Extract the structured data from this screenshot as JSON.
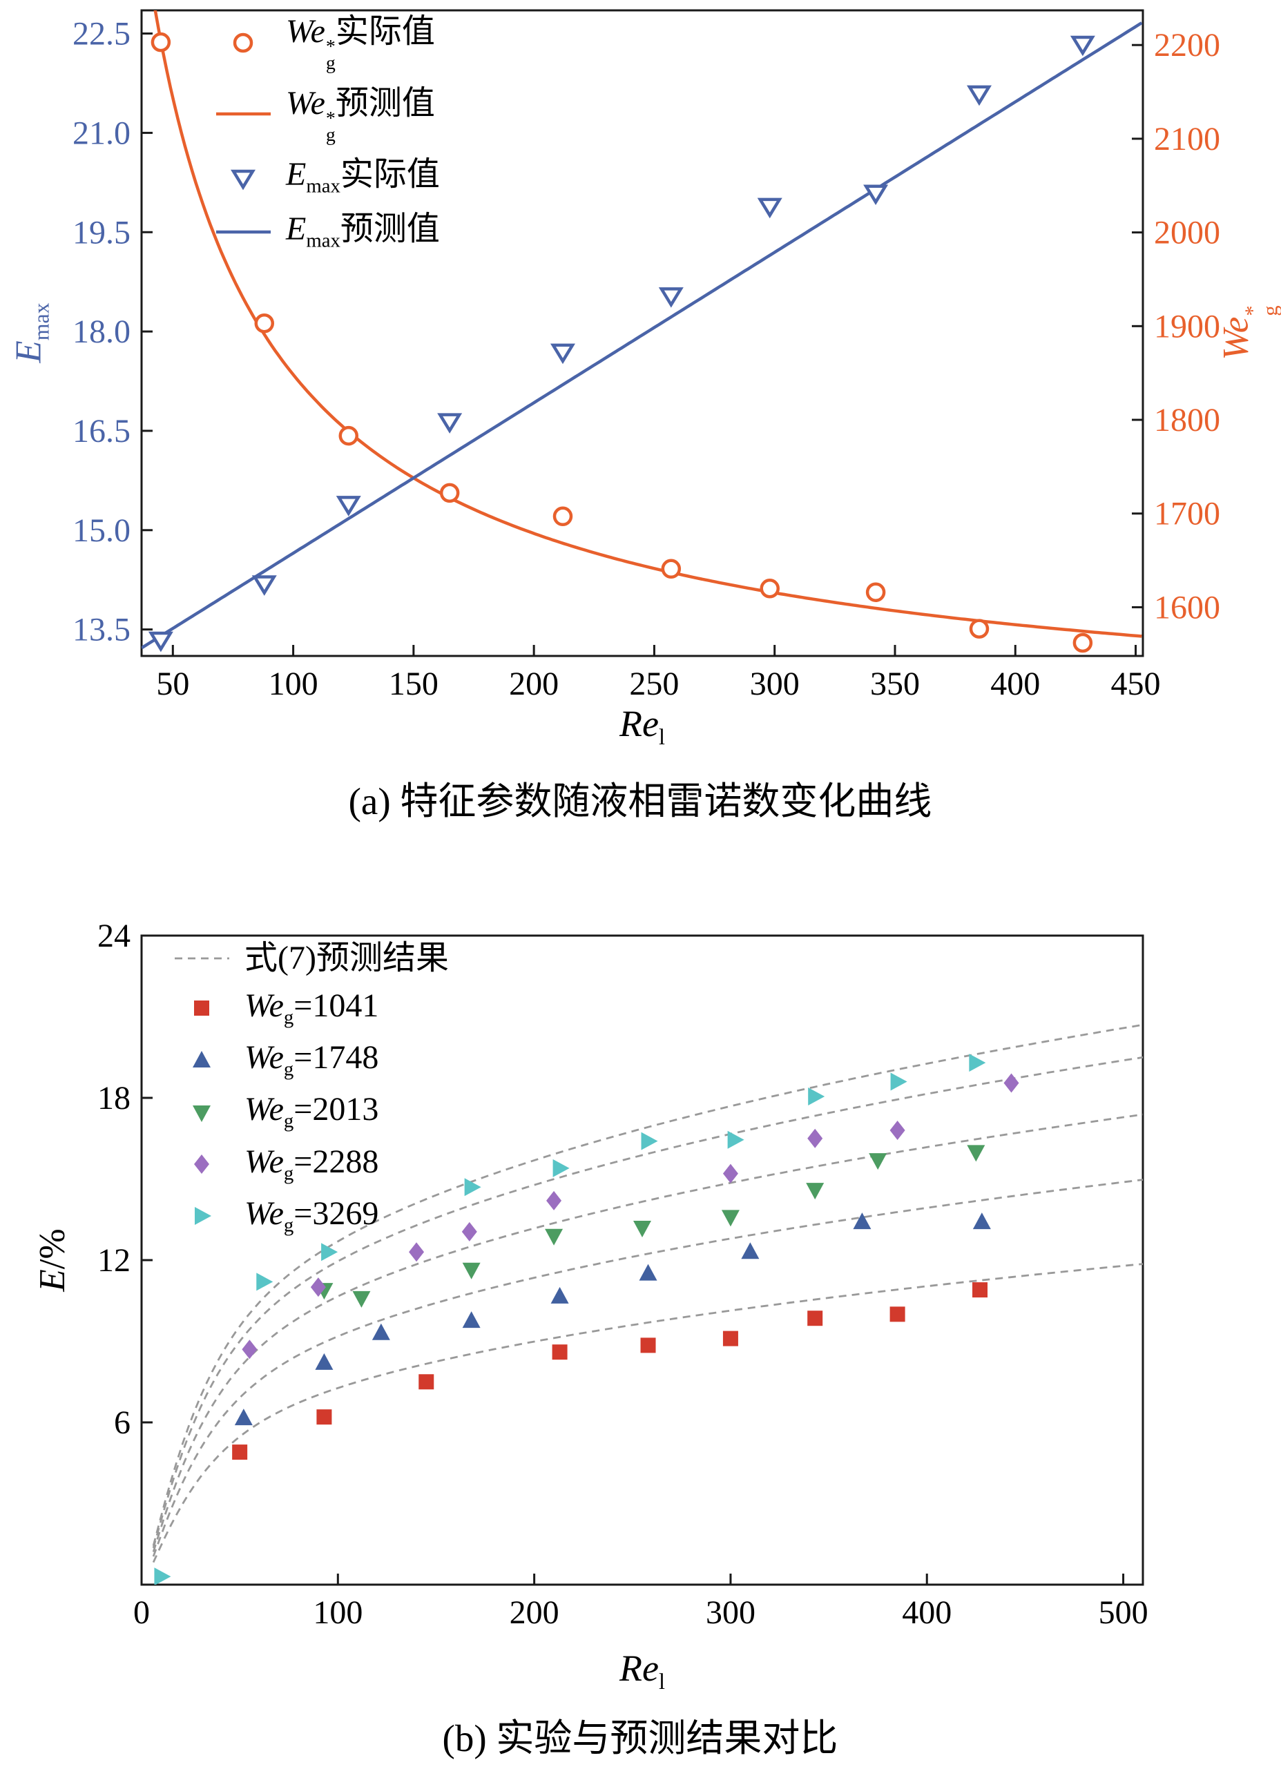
{
  "colors": {
    "orange": "#E8602C",
    "blue": "#4A64A8",
    "axis": "#1a1a1a",
    "black": "#000000",
    "red": "#D23A2C",
    "blue2": "#41609F",
    "green": "#4C9C61",
    "purple": "#9B6EC0",
    "teal": "#58C4C6",
    "gray_dash": "#999999",
    "background": "#ffffff"
  },
  "captions": {
    "a": "(a) 特征参数随液相雷诺数变化曲线",
    "b": "(b) 实验与预测结果对比"
  },
  "chart_data": [
    {
      "id": "a",
      "type": "line",
      "title": "",
      "grid": false,
      "legend_position": "upper-left",
      "x_axis": {
        "label": {
          "base": "Re",
          "sub": "l"
        },
        "range": [
          37,
          453
        ],
        "ticks": [
          "50",
          "100",
          "150",
          "200",
          "250",
          "300",
          "350",
          "400",
          "450"
        ]
      },
      "y_left": {
        "label": {
          "base": "E",
          "sub": "max"
        },
        "range": [
          13.1,
          22.85
        ],
        "ticks": [
          "13.5",
          "15.0",
          "16.5",
          "18.0",
          "19.5",
          "21.0",
          "22.5"
        ],
        "color": "blue"
      },
      "y_right": {
        "label": {
          "base": "We",
          "sup": "*",
          "sub": "g"
        },
        "range": [
          1548,
          2237
        ],
        "ticks": [
          "1600",
          "1700",
          "1800",
          "1900",
          "2000",
          "2100",
          "2200"
        ],
        "color": "orange"
      },
      "series": [
        {
          "name": "weg-actual",
          "axis": "right",
          "marker": "circle-open",
          "color": "orange",
          "legend": {
            "base": "We",
            "sup": "*",
            "sub": "g",
            "rest": "实际值"
          },
          "points": [
            [
              45,
              2203
            ],
            [
              88,
              1903
            ],
            [
              123,
              1783
            ],
            [
              165,
              1722
            ],
            [
              212,
              1697
            ],
            [
              257,
              1641
            ],
            [
              298,
              1620
            ],
            [
              342,
              1616
            ],
            [
              385,
              1577
            ],
            [
              428,
              1562
            ]
          ]
        },
        {
          "name": "weg-pred",
          "axis": "right",
          "color": "orange",
          "legend": {
            "base": "We",
            "sup": "*",
            "sub": "g",
            "rest": "预测值"
          },
          "curve": {
            "type": "offset-power",
            "C": 1450,
            "K": 15855,
            "p": 0.8
          }
        },
        {
          "name": "emax-actual",
          "axis": "left",
          "marker": "triangle-down-open",
          "color": "blue",
          "legend": {
            "base": "E",
            "sub": "max",
            "rest": "实际值"
          },
          "points": [
            [
              45,
              13.35
            ],
            [
              88,
              14.2
            ],
            [
              123,
              15.4
            ],
            [
              165,
              16.65
            ],
            [
              212,
              17.7
            ],
            [
              257,
              18.55
            ],
            [
              298,
              19.9
            ],
            [
              342,
              20.1
            ],
            [
              385,
              21.6
            ],
            [
              428,
              22.35
            ]
          ]
        },
        {
          "name": "emax-pred",
          "axis": "left",
          "color": "blue",
          "legend": {
            "base": "E",
            "sub": "max",
            "rest": "预测值"
          },
          "curve": {
            "type": "linear",
            "m": 0.02272,
            "b": 12.38
          }
        }
      ]
    },
    {
      "id": "b",
      "type": "scatter",
      "title": "",
      "grid": false,
      "legend_position": "upper-left",
      "x_axis": {
        "label": {
          "base": "Re",
          "sub": "l"
        },
        "range": [
          0,
          510
        ],
        "ticks": [
          "0",
          "100",
          "200",
          "300",
          "400",
          "500"
        ]
      },
      "y_left": {
        "label": {
          "base": "E",
          "rest": "/%"
        },
        "range": [
          0,
          24
        ],
        "ticks": [
          "6",
          "12",
          "18",
          "24"
        ],
        "color": "black"
      },
      "prediction_legend": {
        "rest": "式(7)预测结果"
      },
      "prediction_curve_model": {
        "form": "E = k * Re^p * (1 - exp(-Re/damp))",
        "p": 0.296,
        "damp": 20
      },
      "prediction_curves": [
        {
          "for": "weg-1041",
          "k": 1.873
        },
        {
          "for": "weg-1748",
          "k": 2.365
        },
        {
          "for": "weg-2013",
          "k": 2.746
        },
        {
          "for": "weg-2288",
          "k": 3.08
        },
        {
          "for": "weg-3269",
          "k": 3.27
        }
      ],
      "series": [
        {
          "name": "weg-1041",
          "marker": "square",
          "color": "red",
          "legend": {
            "base": "We",
            "sub": "g",
            "rest": "=1041"
          },
          "points": [
            [
              50,
              4.9
            ],
            [
              93,
              6.2
            ],
            [
              145,
              7.5
            ],
            [
              213,
              8.6
            ],
            [
              258,
              8.85
            ],
            [
              300,
              9.1
            ],
            [
              343,
              9.85
            ],
            [
              385,
              10.0
            ],
            [
              427,
              10.9
            ]
          ]
        },
        {
          "name": "weg-1748",
          "marker": "triangle-up",
          "color": "blue2",
          "legend": {
            "base": "We",
            "sub": "g",
            "rest": "=1748"
          },
          "points": [
            [
              52,
              6.15
            ],
            [
              93,
              8.2
            ],
            [
              122,
              9.3
            ],
            [
              168,
              9.75
            ],
            [
              213,
              10.65
            ],
            [
              258,
              11.5
            ],
            [
              310,
              12.3
            ],
            [
              367,
              13.4
            ],
            [
              428,
              13.4
            ]
          ]
        },
        {
          "name": "weg-2013",
          "marker": "triangle-down",
          "color": "green",
          "legend": {
            "base": "We",
            "sub": "g",
            "rest": "=2013"
          },
          "points": [
            [
              93,
              10.9
            ],
            [
              112,
              10.6
            ],
            [
              168,
              11.65
            ],
            [
              210,
              12.9
            ],
            [
              255,
              13.2
            ],
            [
              300,
              13.6
            ],
            [
              343,
              14.6
            ],
            [
              375,
              15.7
            ],
            [
              425,
              16.0
            ]
          ]
        },
        {
          "name": "weg-2288",
          "marker": "diamond",
          "color": "purple",
          "legend": {
            "base": "We",
            "sub": "g",
            "rest": "=2288"
          },
          "points": [
            [
              55,
              8.7
            ],
            [
              90,
              11.0
            ],
            [
              140,
              12.3
            ],
            [
              167,
              13.05
            ],
            [
              210,
              14.2
            ],
            [
              300,
              15.2
            ],
            [
              343,
              16.5
            ],
            [
              385,
              16.8
            ],
            [
              443,
              18.55
            ]
          ]
        },
        {
          "name": "weg-3269",
          "marker": "triangle-right",
          "color": "teal",
          "legend": {
            "base": "We",
            "sub": "g",
            "rest": "=3269"
          },
          "points": [
            [
              10,
              0.3
            ],
            [
              62,
              11.2
            ],
            [
              95,
              12.3
            ],
            [
              168,
              14.7
            ],
            [
              213,
              15.4
            ],
            [
              258,
              16.4
            ],
            [
              302,
              16.45
            ],
            [
              343,
              18.05
            ],
            [
              385,
              18.6
            ],
            [
              425,
              19.3
            ]
          ]
        }
      ]
    }
  ]
}
